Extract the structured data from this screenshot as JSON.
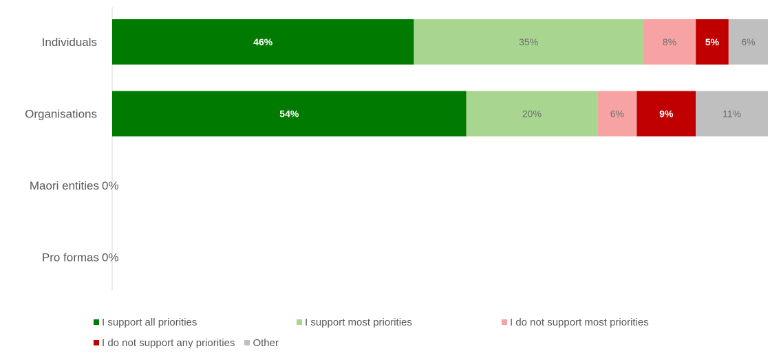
{
  "chart_data": {
    "type": "bar",
    "orientation": "horizontal",
    "stacked": true,
    "categories": [
      "Individuals",
      "Organisations",
      "Maori entities",
      "Pro formas"
    ],
    "empty_value_labels": [
      "",
      "",
      "0%",
      "0%"
    ],
    "xlim": [
      0,
      100
    ],
    "grid": false,
    "legend_position": "bottom",
    "series": [
      {
        "name": "I support all priorities",
        "color": "#007a00",
        "label_color": "#ffffff",
        "bold": true,
        "values": [
          46,
          54,
          0,
          0
        ],
        "labels": [
          "46%",
          "54%",
          "",
          ""
        ]
      },
      {
        "name": "I support most priorities",
        "color": "#a8d690",
        "label_color": "#6f6f6f",
        "bold": false,
        "values": [
          35,
          20,
          0,
          0
        ],
        "labels": [
          "35%",
          "20%",
          "",
          ""
        ]
      },
      {
        "name": "I do not support most priorities",
        "color": "#f7a3a3",
        "label_color": "#6f6f6f",
        "bold": false,
        "values": [
          8,
          6,
          0,
          0
        ],
        "labels": [
          "8%",
          "6%",
          "",
          ""
        ]
      },
      {
        "name": "I do not support any priorities",
        "color": "#c00000",
        "label_color": "#ffffff",
        "bold": true,
        "values": [
          5,
          9,
          0,
          0
        ],
        "labels": [
          "5%",
          "9%",
          "",
          ""
        ]
      },
      {
        "name": "Other",
        "color": "#bfbfbf",
        "label_color": "#6f6f6f",
        "bold": false,
        "values": [
          6,
          11,
          0,
          0
        ],
        "labels": [
          "6%",
          "11%",
          "",
          ""
        ]
      }
    ],
    "axis_color": "#d9d9d9"
  }
}
